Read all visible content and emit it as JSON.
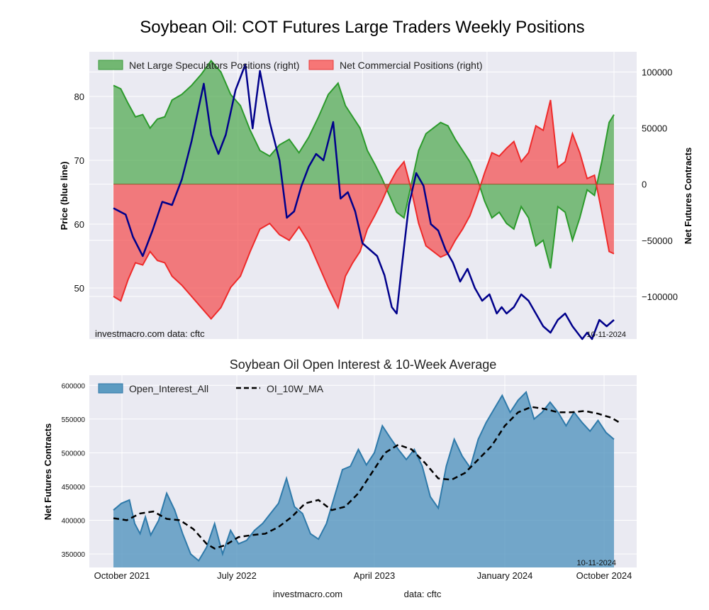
{
  "title": "Soybean Oil: COT Futures Large Traders Weekly Positions",
  "chart_data": [
    {
      "type": "area",
      "name": "positions",
      "ylabel_left": "Price (blue line)",
      "ylabel_right": "Net Futures Contracts",
      "legend": [
        "Net Large Speculators Positions (right)",
        "Net Commercial Positions (right)"
      ],
      "legend_placement": "top-left",
      "credit": "investmacro.com    data: cftc",
      "date_stamp": "10-11-2024",
      "grid": true,
      "left_ticks": [
        50,
        60,
        70,
        80
      ],
      "right_ticks": [
        100000,
        50000,
        0,
        -50000,
        -100000
      ],
      "left_lim": [
        42,
        87
      ],
      "right_lim": [
        -138000,
        118000
      ],
      "weeks": 157,
      "price": [
        [
          0,
          62.5
        ],
        [
          5,
          61.5
        ],
        [
          8,
          58
        ],
        [
          12,
          55
        ],
        [
          16,
          59
        ],
        [
          20,
          63.5
        ],
        [
          24,
          63
        ],
        [
          28,
          67
        ],
        [
          32,
          73
        ],
        [
          37,
          82
        ],
        [
          40,
          74
        ],
        [
          43,
          71
        ],
        [
          46,
          74
        ],
        [
          50,
          81
        ],
        [
          54,
          85
        ],
        [
          57,
          75
        ],
        [
          60,
          84
        ],
        [
          64,
          76
        ],
        [
          68,
          70
        ],
        [
          71,
          61
        ],
        [
          74,
          62
        ],
        [
          77,
          66
        ],
        [
          80,
          69
        ],
        [
          83,
          71
        ],
        [
          86,
          70
        ],
        [
          90,
          76
        ],
        [
          93,
          64
        ],
        [
          96,
          65
        ],
        [
          99,
          62
        ],
        [
          102,
          57
        ],
        [
          105,
          56
        ],
        [
          108,
          55
        ],
        [
          111,
          52
        ],
        [
          114,
          47
        ],
        [
          116,
          46
        ],
        [
          118,
          53
        ],
        [
          121,
          63
        ],
        [
          124,
          68
        ],
        [
          127,
          66
        ],
        [
          130,
          60
        ],
        [
          133,
          59
        ],
        [
          136,
          56
        ],
        [
          139,
          54
        ],
        [
          142,
          51
        ],
        [
          145,
          53
        ],
        [
          148,
          50
        ],
        [
          151,
          48
        ],
        [
          154,
          49
        ],
        [
          157,
          46
        ],
        [
          159,
          47
        ],
        [
          161,
          46
        ],
        [
          164,
          47
        ],
        [
          167,
          49
        ],
        [
          170,
          48
        ],
        [
          173,
          46
        ],
        [
          176,
          44
        ],
        [
          179,
          43
        ],
        [
          182,
          45
        ],
        [
          185,
          46
        ],
        [
          188,
          44
        ],
        [
          190,
          43
        ],
        [
          192,
          42
        ],
        [
          194,
          43
        ],
        [
          196,
          42
        ],
        [
          199,
          45
        ],
        [
          202,
          44
        ],
        [
          205,
          45
        ]
      ],
      "net_spec": [
        [
          0,
          88000
        ],
        [
          3,
          85000
        ],
        [
          6,
          72000
        ],
        [
          9,
          60000
        ],
        [
          12,
          62000
        ],
        [
          15,
          50000
        ],
        [
          18,
          58000
        ],
        [
          21,
          60000
        ],
        [
          24,
          75000
        ],
        [
          28,
          80000
        ],
        [
          32,
          88000
        ],
        [
          36,
          98000
        ],
        [
          40,
          110000
        ],
        [
          44,
          100000
        ],
        [
          48,
          80000
        ],
        [
          52,
          70000
        ],
        [
          56,
          48000
        ],
        [
          60,
          30000
        ],
        [
          64,
          25000
        ],
        [
          68,
          35000
        ],
        [
          72,
          40000
        ],
        [
          76,
          28000
        ],
        [
          80,
          42000
        ],
        [
          84,
          60000
        ],
        [
          88,
          80000
        ],
        [
          92,
          90000
        ],
        [
          95,
          70000
        ],
        [
          98,
          60000
        ],
        [
          101,
          50000
        ],
        [
          104,
          30000
        ],
        [
          107,
          18000
        ],
        [
          110,
          5000
        ],
        [
          113,
          -10000
        ],
        [
          116,
          -25000
        ],
        [
          119,
          -30000
        ],
        [
          122,
          0
        ],
        [
          125,
          30000
        ],
        [
          128,
          45000
        ],
        [
          131,
          50000
        ],
        [
          134,
          55000
        ],
        [
          137,
          52000
        ],
        [
          140,
          40000
        ],
        [
          143,
          30000
        ],
        [
          146,
          20000
        ],
        [
          149,
          5000
        ],
        [
          152,
          -15000
        ],
        [
          155,
          -30000
        ],
        [
          158,
          -25000
        ],
        [
          161,
          -35000
        ],
        [
          164,
          -40000
        ],
        [
          167,
          -20000
        ],
        [
          170,
          -30000
        ],
        [
          173,
          -55000
        ],
        [
          176,
          -50000
        ],
        [
          179,
          -75000
        ],
        [
          182,
          -20000
        ],
        [
          185,
          -25000
        ],
        [
          188,
          -50000
        ],
        [
          191,
          -30000
        ],
        [
          194,
          -5000
        ],
        [
          197,
          -10000
        ],
        [
          200,
          20000
        ],
        [
          203,
          55000
        ],
        [
          205,
          62000
        ]
      ],
      "net_comm": [
        [
          0,
          -100000
        ],
        [
          3,
          -104000
        ],
        [
          6,
          -85000
        ],
        [
          9,
          -70000
        ],
        [
          12,
          -72000
        ],
        [
          15,
          -60000
        ],
        [
          18,
          -68000
        ],
        [
          21,
          -70000
        ],
        [
          24,
          -82000
        ],
        [
          28,
          -90000
        ],
        [
          32,
          -100000
        ],
        [
          36,
          -110000
        ],
        [
          40,
          -120000
        ],
        [
          44,
          -110000
        ],
        [
          48,
          -92000
        ],
        [
          52,
          -82000
        ],
        [
          56,
          -60000
        ],
        [
          60,
          -40000
        ],
        [
          64,
          -35000
        ],
        [
          68,
          -45000
        ],
        [
          72,
          -50000
        ],
        [
          76,
          -38000
        ],
        [
          80,
          -52000
        ],
        [
          84,
          -72000
        ],
        [
          88,
          -92000
        ],
        [
          92,
          -110000
        ],
        [
          95,
          -82000
        ],
        [
          98,
          -70000
        ],
        [
          101,
          -60000
        ],
        [
          104,
          -40000
        ],
        [
          107,
          -28000
        ],
        [
          110,
          -15000
        ],
        [
          113,
          0
        ],
        [
          116,
          12000
        ],
        [
          119,
          20000
        ],
        [
          122,
          -5000
        ],
        [
          125,
          -35000
        ],
        [
          128,
          -55000
        ],
        [
          131,
          -60000
        ],
        [
          134,
          -65000
        ],
        [
          137,
          -62000
        ],
        [
          140,
          -50000
        ],
        [
          143,
          -40000
        ],
        [
          146,
          -28000
        ],
        [
          149,
          -10000
        ],
        [
          152,
          10000
        ],
        [
          155,
          28000
        ],
        [
          158,
          25000
        ],
        [
          161,
          32000
        ],
        [
          164,
          38000
        ],
        [
          167,
          20000
        ],
        [
          170,
          28000
        ],
        [
          173,
          52000
        ],
        [
          176,
          48000
        ],
        [
          179,
          75000
        ],
        [
          182,
          15000
        ],
        [
          185,
          20000
        ],
        [
          188,
          45000
        ],
        [
          191,
          28000
        ],
        [
          194,
          5000
        ],
        [
          197,
          8000
        ],
        [
          200,
          -25000
        ],
        [
          203,
          -60000
        ],
        [
          205,
          -62000
        ]
      ]
    },
    {
      "type": "area",
      "name": "open_interest",
      "title": "Soybean Oil Open Interest & 10-Week Average",
      "ylabel": "Net Futures Contracts",
      "legend": [
        "Open_Interest_All",
        "OI_10W_MA"
      ],
      "legend_placement": "top-left",
      "date_stamp": "10-11-2024",
      "grid": true,
      "y_ticks": [
        350000,
        400000,
        450000,
        500000,
        550000,
        600000
      ],
      "ylim": [
        330000,
        615000
      ],
      "x_ticks": [
        "October 2021",
        "July 2022",
        "April 2023",
        "January 2024",
        "October 2024"
      ],
      "open_interest": [
        [
          0,
          415000
        ],
        [
          3,
          425000
        ],
        [
          6,
          430000
        ],
        [
          8,
          395000
        ],
        [
          10,
          380000
        ],
        [
          12,
          405000
        ],
        [
          14,
          378000
        ],
        [
          17,
          400000
        ],
        [
          20,
          440000
        ],
        [
          23,
          415000
        ],
        [
          26,
          380000
        ],
        [
          29,
          350000
        ],
        [
          32,
          340000
        ],
        [
          35,
          360000
        ],
        [
          38,
          395000
        ],
        [
          41,
          350000
        ],
        [
          44,
          385000
        ],
        [
          47,
          365000
        ],
        [
          50,
          370000
        ],
        [
          53,
          385000
        ],
        [
          56,
          395000
        ],
        [
          59,
          410000
        ],
        [
          62,
          425000
        ],
        [
          65,
          462000
        ],
        [
          68,
          420000
        ],
        [
          71,
          410000
        ],
        [
          74,
          380000
        ],
        [
          77,
          372000
        ],
        [
          80,
          395000
        ],
        [
          83,
          435000
        ],
        [
          86,
          475000
        ],
        [
          89,
          480000
        ],
        [
          92,
          505000
        ],
        [
          95,
          482000
        ],
        [
          98,
          500000
        ],
        [
          101,
          540000
        ],
        [
          104,
          522000
        ],
        [
          107,
          505000
        ],
        [
          110,
          490000
        ],
        [
          113,
          505000
        ],
        [
          116,
          480000
        ],
        [
          119,
          435000
        ],
        [
          122,
          418000
        ],
        [
          125,
          480000
        ],
        [
          128,
          520000
        ],
        [
          131,
          495000
        ],
        [
          134,
          478000
        ],
        [
          137,
          520000
        ],
        [
          140,
          545000
        ],
        [
          143,
          565000
        ],
        [
          146,
          585000
        ],
        [
          149,
          560000
        ],
        [
          152,
          578000
        ],
        [
          155,
          590000
        ],
        [
          158,
          550000
        ],
        [
          161,
          560000
        ],
        [
          164,
          575000
        ],
        [
          167,
          560000
        ],
        [
          170,
          540000
        ],
        [
          173,
          560000
        ],
        [
          176,
          545000
        ],
        [
          179,
          532000
        ],
        [
          182,
          548000
        ],
        [
          185,
          530000
        ],
        [
          188,
          520000
        ]
      ],
      "oi_ma": [
        [
          0,
          403000
        ],
        [
          5,
          400000
        ],
        [
          10,
          410000
        ],
        [
          15,
          413000
        ],
        [
          20,
          402000
        ],
        [
          25,
          400000
        ],
        [
          30,
          387000
        ],
        [
          35,
          365000
        ],
        [
          38,
          358000
        ],
        [
          42,
          363000
        ],
        [
          47,
          375000
        ],
        [
          52,
          378000
        ],
        [
          57,
          380000
        ],
        [
          62,
          390000
        ],
        [
          67,
          405000
        ],
        [
          72,
          425000
        ],
        [
          77,
          430000
        ],
        [
          82,
          415000
        ],
        [
          87,
          420000
        ],
        [
          92,
          440000
        ],
        [
          97,
          470000
        ],
        [
          102,
          500000
        ],
        [
          107,
          512000
        ],
        [
          112,
          505000
        ],
        [
          117,
          485000
        ],
        [
          122,
          462000
        ],
        [
          127,
          460000
        ],
        [
          132,
          470000
        ],
        [
          137,
          490000
        ],
        [
          142,
          510000
        ],
        [
          147,
          540000
        ],
        [
          152,
          560000
        ],
        [
          157,
          568000
        ],
        [
          162,
          565000
        ],
        [
          167,
          560000
        ],
        [
          172,
          560000
        ],
        [
          177,
          562000
        ],
        [
          182,
          558000
        ],
        [
          187,
          552000
        ],
        [
          190,
          545000
        ]
      ]
    }
  ],
  "footer": {
    "site": "investmacro.com",
    "data": "data: cftc"
  }
}
